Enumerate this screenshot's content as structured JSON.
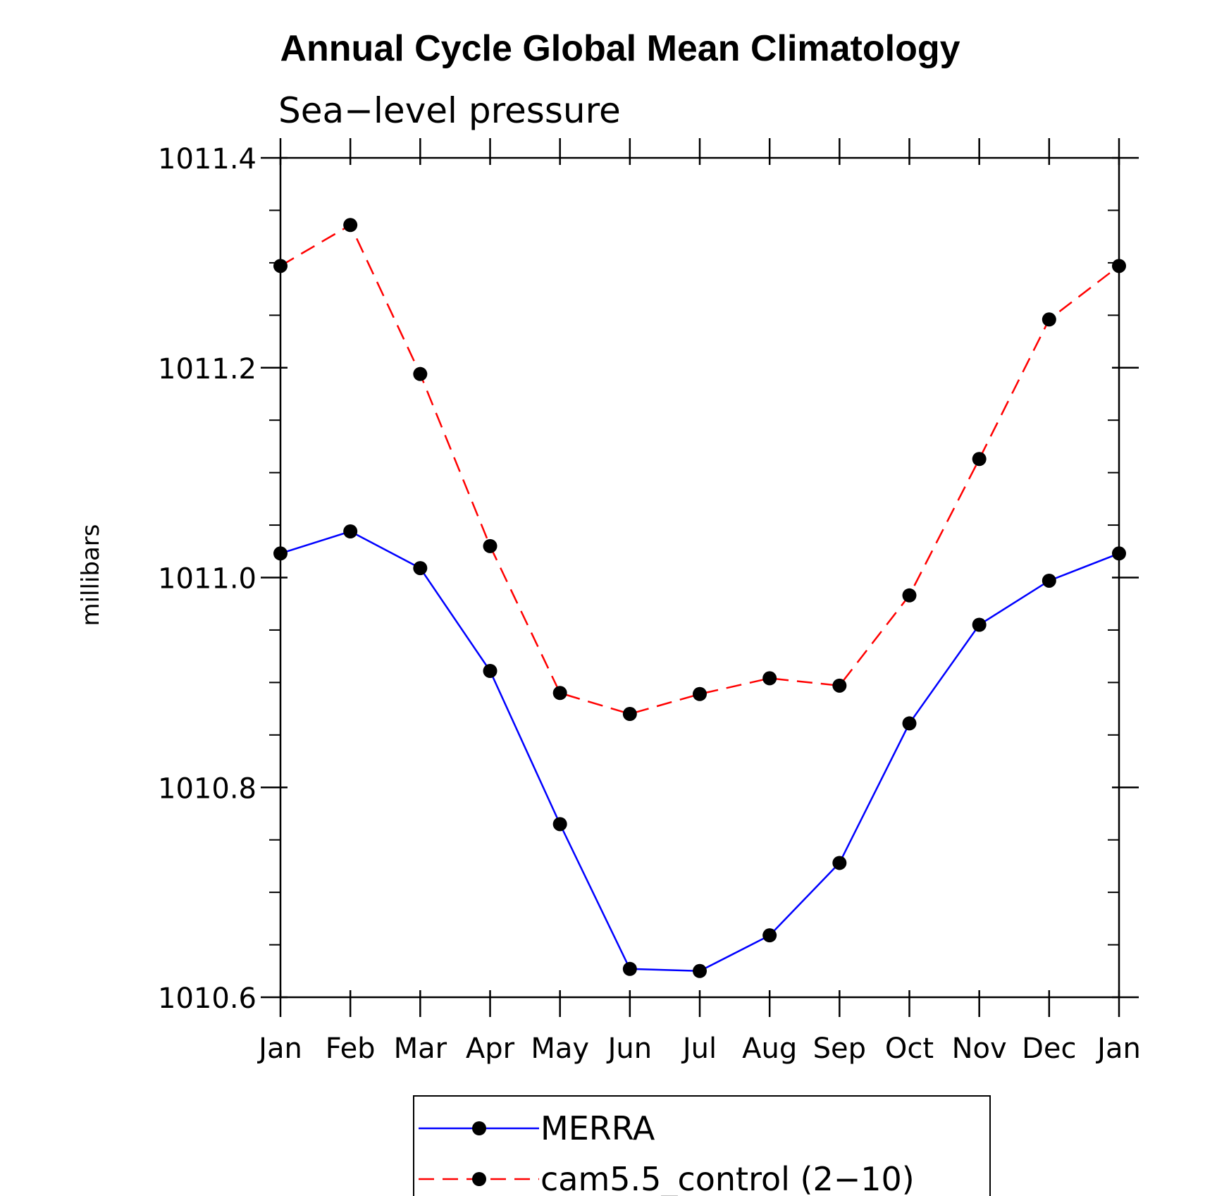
{
  "chart_data": {
    "type": "line",
    "title": "Annual Cycle Global Mean Climatology",
    "subtitle": "Sea−level pressure",
    "xlabel": "",
    "ylabel": "millibars",
    "categories": [
      "Jan",
      "Feb",
      "Mar",
      "Apr",
      "May",
      "Jun",
      "Jul",
      "Aug",
      "Sep",
      "Oct",
      "Nov",
      "Dec",
      "Jan"
    ],
    "yticks": [
      "1010.6",
      "1010.8",
      "1011.0",
      "1011.2",
      "1011.4"
    ],
    "ylim": [
      1010.6,
      1011.4
    ],
    "minor_ytick_step": 0.05,
    "grid": false,
    "legend_position": "bottom-center",
    "series": [
      {
        "name": "MERRA",
        "color": "#0000ff",
        "dash": "solid",
        "marker": "filled-circle",
        "values": [
          1011.023,
          1011.044,
          1011.009,
          1010.911,
          1010.765,
          1010.627,
          1010.625,
          1010.659,
          1010.728,
          1010.861,
          1010.955,
          1010.997,
          1011.023
        ]
      },
      {
        "name": "cam5.5_control (2−10)",
        "color": "#ff0000",
        "dash": "dashed",
        "marker": "filled-circle",
        "values": [
          1011.297,
          1011.336,
          1011.194,
          1011.03,
          1010.89,
          1010.87,
          1010.889,
          1010.904,
          1010.897,
          1010.983,
          1011.113,
          1011.246,
          1011.297
        ]
      }
    ]
  }
}
